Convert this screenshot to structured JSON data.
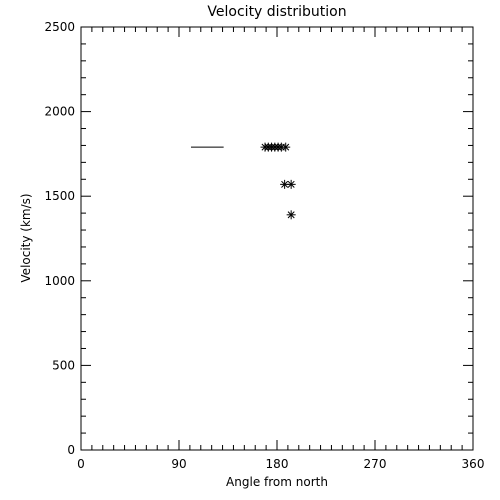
{
  "chart_data": {
    "type": "scatter",
    "title": "Velocity distribution",
    "xlabel": "Angle from north",
    "ylabel": "Velocity (km/s)",
    "xlim": [
      0,
      360
    ],
    "ylim": [
      0,
      2500
    ],
    "xticks": [
      0,
      90,
      180,
      270,
      360
    ],
    "yticks": [
      0,
      500,
      1000,
      1500,
      2000,
      2500
    ],
    "grid": false,
    "segment": {
      "x": [
        101,
        131
      ],
      "y": 1790
    },
    "points": [
      {
        "x": 169,
        "y": 1790
      },
      {
        "x": 172,
        "y": 1790
      },
      {
        "x": 175,
        "y": 1790
      },
      {
        "x": 178,
        "y": 1790
      },
      {
        "x": 181,
        "y": 1790
      },
      {
        "x": 184,
        "y": 1790
      },
      {
        "x": 188,
        "y": 1790
      },
      {
        "x": 187,
        "y": 1570
      },
      {
        "x": 193,
        "y": 1570
      },
      {
        "x": 193,
        "y": 1390
      }
    ],
    "marker": "asterisk",
    "color": "#000000"
  }
}
